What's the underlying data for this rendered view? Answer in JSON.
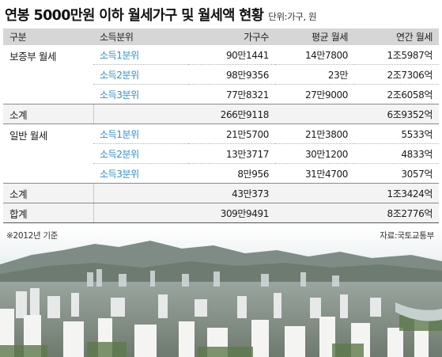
{
  "title": "연봉 5000만원 이하 월세가구 및 월세액 현황",
  "unit": "단위:가구, 원",
  "header": {
    "category": "구분",
    "tier": "소득분위",
    "households": "가구수",
    "avg_rent": "평균 월세",
    "annual_rent": "연간 월세"
  },
  "sections": {
    "deposit_monthly": {
      "label": "보증부 월세",
      "rows": [
        {
          "tier": "소득1분위",
          "households": "90만1441",
          "avg_rent": "14만7800",
          "annual_rent": "1조5987억"
        },
        {
          "tier": "소득2분위",
          "households": "98만9356",
          "avg_rent": "23만",
          "annual_rent": "2조7306억"
        },
        {
          "tier": "소득3분위",
          "households": "77만8321",
          "avg_rent": "27만9000",
          "annual_rent": "2조6058억"
        }
      ],
      "subtotal": {
        "label": "소계",
        "households": "266만9118",
        "annual_rent": "6조9352억"
      }
    },
    "general_monthly": {
      "label": "일반 월세",
      "rows": [
        {
          "tier": "소득1분위",
          "households": "21만5700",
          "avg_rent": "21만3800",
          "annual_rent": "5533억"
        },
        {
          "tier": "소득2분위",
          "households": "13만3717",
          "avg_rent": "30만1200",
          "annual_rent": "4833억"
        },
        {
          "tier": "소득3분위",
          "households": "8만956",
          "avg_rent": "31만4700",
          "annual_rent": "3057억"
        }
      ],
      "subtotal": {
        "label": "소계",
        "households": "43만373",
        "annual_rent": "1조3424억"
      }
    }
  },
  "total": {
    "label": "합계",
    "households": "309만9491",
    "annual_rent": "8조2776억"
  },
  "footnote": "※2012년 기준",
  "source": "자료:국토교통부",
  "colors": {
    "tier_text": "#2e8fc8",
    "header_bg": "#d6d6d6",
    "subtotal_bg": "#f3f3f3"
  }
}
